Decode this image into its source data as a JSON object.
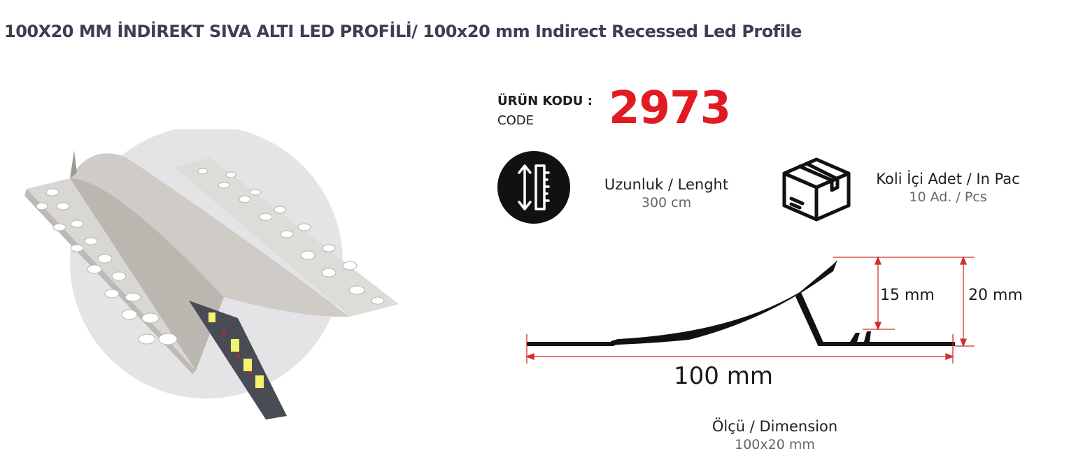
{
  "header": {
    "title": "100X20 MM İNDİREKT SIVA ALTI LED PROFİLİ/ 100x20 mm Indirect Recessed Led Profile"
  },
  "product": {
    "code_label": "ÜRÜN KODU :",
    "code_sub_label": "CODE",
    "code_value": "2973",
    "code_color": "#e11b22"
  },
  "specs": {
    "length": {
      "icon": "length-ruler-icon",
      "title": "Uzunluk / Lenght",
      "value": "300 cm"
    },
    "pack": {
      "icon": "box-icon",
      "title": "Koli İçi Adet / In Pac",
      "value": "10 Ad. / Pcs"
    },
    "dimension": {
      "title": "Ölçü / Dimension",
      "value": "100x20 mm"
    }
  },
  "drawing": {
    "height_inner": "15 mm",
    "height_total": "20 mm",
    "width_total": "100 mm",
    "dimension_line_color": "#d32f2f"
  }
}
